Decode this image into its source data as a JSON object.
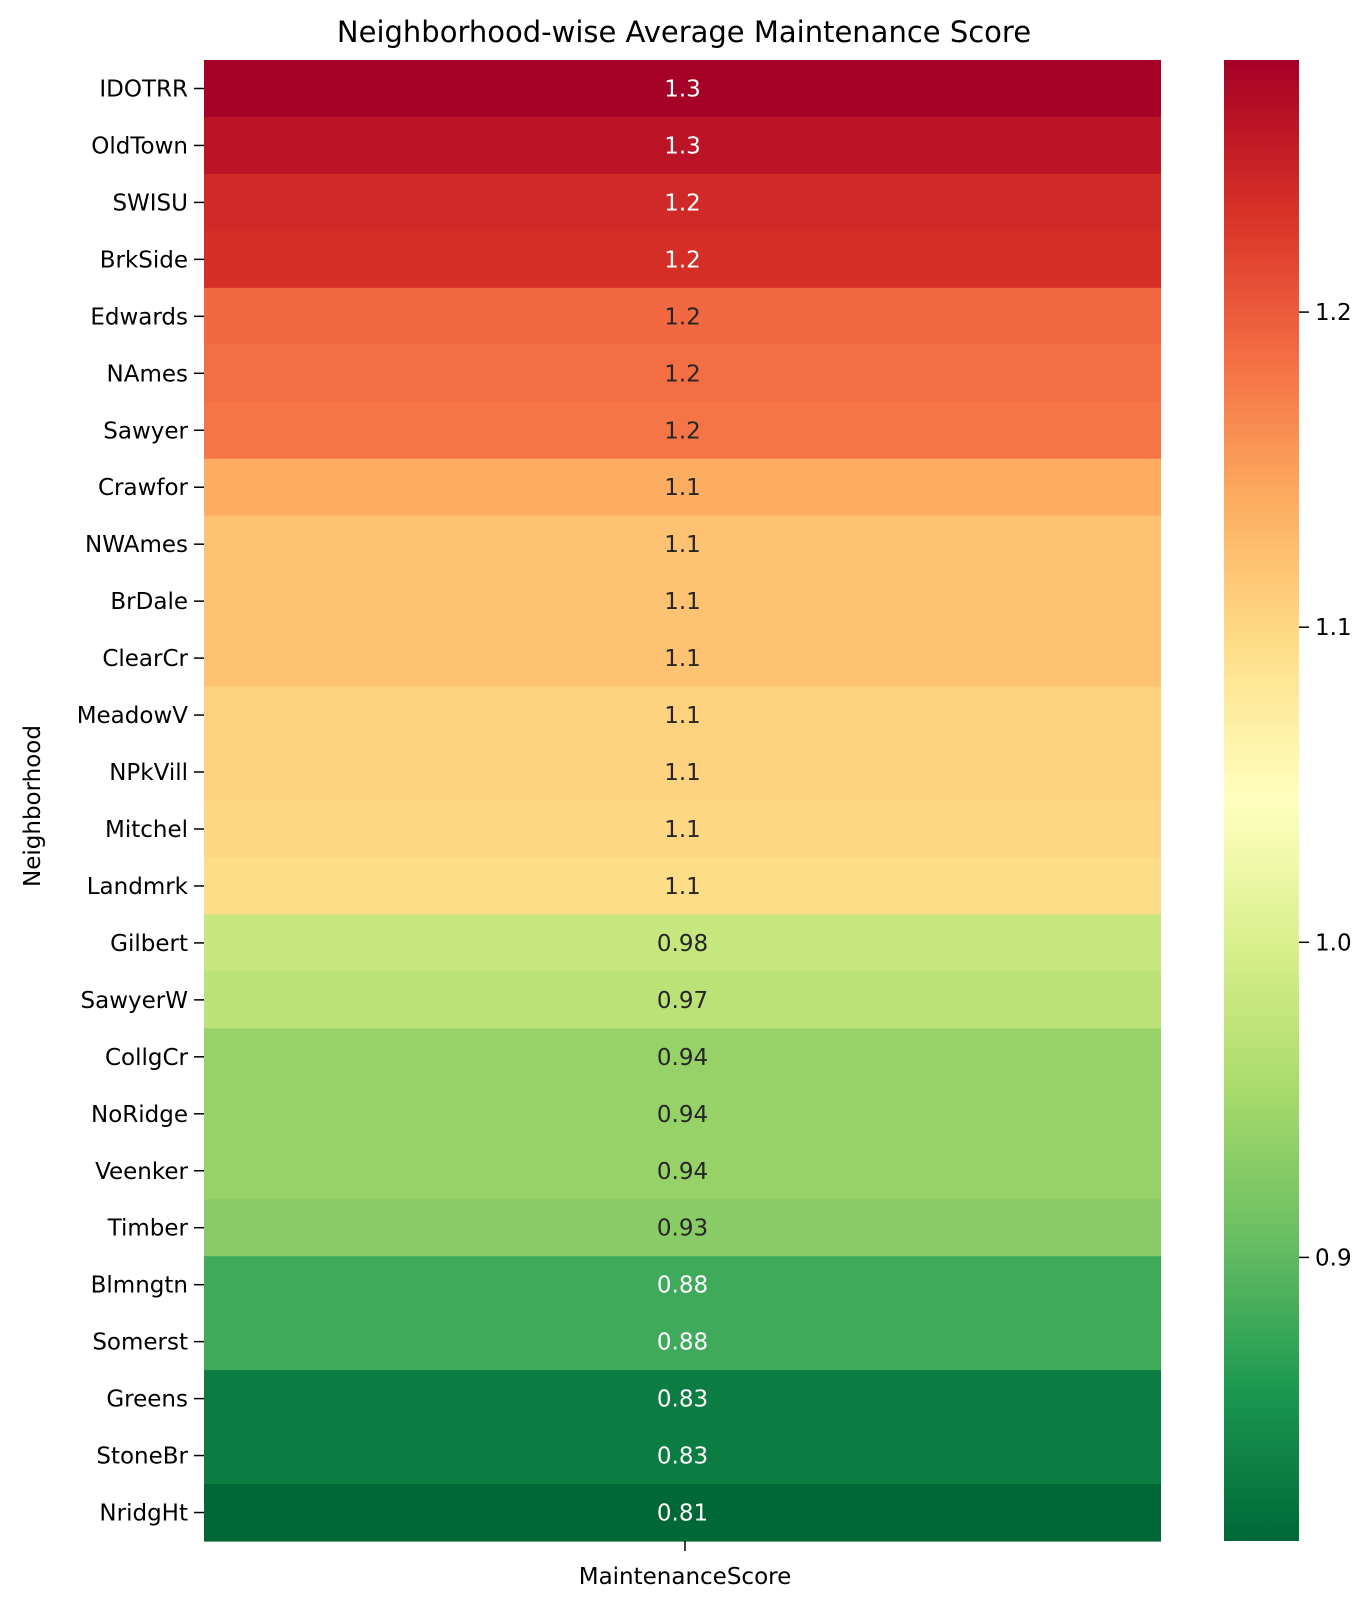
{
  "chart_data": {
    "type": "heatmap",
    "title": "Neighborhood-wise Average Maintenance Score",
    "xlabel": "MaintenanceScore",
    "ylabel": "Neighborhood",
    "column": "MaintenanceScore",
    "colormap": "RdYlGn_r",
    "color_range": [
      0.81,
      1.28
    ],
    "colorbar_ticks": [
      "0.9",
      "1.0",
      "1.1",
      "1.2"
    ],
    "rows": [
      {
        "label": "IDOTRR",
        "value": 1.28,
        "text": "1.3"
      },
      {
        "label": "OldTown",
        "value": 1.26,
        "text": "1.3"
      },
      {
        "label": "SWISU",
        "value": 1.24,
        "text": "1.2"
      },
      {
        "label": "BrkSide",
        "value": 1.235,
        "text": "1.2"
      },
      {
        "label": "Edwards",
        "value": 1.19,
        "text": "1.2"
      },
      {
        "label": "NAmes",
        "value": 1.185,
        "text": "1.2"
      },
      {
        "label": "Sawyer",
        "value": 1.18,
        "text": "1.2"
      },
      {
        "label": "Crawfor",
        "value": 1.14,
        "text": "1.1"
      },
      {
        "label": "NWAmes",
        "value": 1.12,
        "text": "1.1"
      },
      {
        "label": "BrDale",
        "value": 1.12,
        "text": "1.1"
      },
      {
        "label": "ClearCr",
        "value": 1.12,
        "text": "1.1"
      },
      {
        "label": "MeadowV",
        "value": 1.105,
        "text": "1.1"
      },
      {
        "label": "NPkVill",
        "value": 1.105,
        "text": "1.1"
      },
      {
        "label": "Mitchel",
        "value": 1.1,
        "text": "1.1"
      },
      {
        "label": "Landmrk",
        "value": 1.095,
        "text": "1.1"
      },
      {
        "label": "Gilbert",
        "value": 0.98,
        "text": "0.98"
      },
      {
        "label": "SawyerW",
        "value": 0.97,
        "text": "0.97"
      },
      {
        "label": "CollgCr",
        "value": 0.94,
        "text": "0.94"
      },
      {
        "label": "NoRidge",
        "value": 0.94,
        "text": "0.94"
      },
      {
        "label": "Veenker",
        "value": 0.94,
        "text": "0.94"
      },
      {
        "label": "Timber",
        "value": 0.93,
        "text": "0.93"
      },
      {
        "label": "Blmngtn",
        "value": 0.88,
        "text": "0.88"
      },
      {
        "label": "Somerst",
        "value": 0.88,
        "text": "0.88"
      },
      {
        "label": "Greens",
        "value": 0.83,
        "text": "0.83"
      },
      {
        "label": "StoneBr",
        "value": 0.83,
        "text": "0.83"
      },
      {
        "label": "NridgHt",
        "value": 0.81,
        "text": "0.81"
      }
    ]
  }
}
